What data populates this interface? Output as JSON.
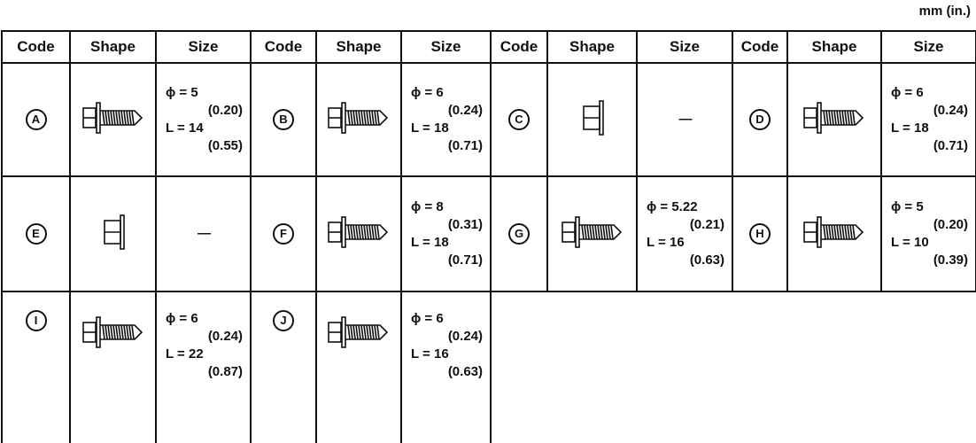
{
  "unit": "mm (in.)",
  "table": {
    "header": [
      "Code",
      "Shape",
      "Size",
      "Code",
      "Shape",
      "Size",
      "Code",
      "Shape",
      "Size",
      "Code",
      "Shape",
      "Size"
    ],
    "rows": [
      [
        {
          "code": "A",
          "size": [
            "ϕ = 5",
            "(0.20)",
            "L = 14",
            "(0.55)"
          ]
        },
        {
          "code": "B",
          "size": [
            "ϕ = 6",
            "(0.24)",
            "L = 18",
            "(0.71)"
          ]
        },
        {
          "code": "C",
          "size": [
            "—"
          ]
        },
        {
          "code": "D",
          "size": [
            "ϕ = 6",
            "(0.24)",
            "L = 18",
            "(0.71)"
          ]
        }
      ],
      [
        {
          "code": "E",
          "size": [
            "—"
          ]
        },
        {
          "code": "F",
          "size": [
            "ϕ = 8",
            "(0.31)",
            "L = 18",
            "(0.71)"
          ]
        },
        {
          "code": "G",
          "size": [
            "ϕ = 5.22",
            "(0.21)",
            "L = 16",
            "(0.63)"
          ]
        },
        {
          "code": "H",
          "size": [
            "ϕ = 5",
            "(0.20)",
            "L = 10",
            "(0.39)"
          ]
        }
      ],
      [
        {
          "code": "I",
          "size": [
            "ϕ = 6",
            "(0.24)",
            "L = 22",
            "(0.87)"
          ]
        },
        {
          "code": "J",
          "size": [
            "ϕ = 6",
            "(0.24)",
            "L = 16",
            "(0.63)"
          ]
        }
      ]
    ]
  }
}
